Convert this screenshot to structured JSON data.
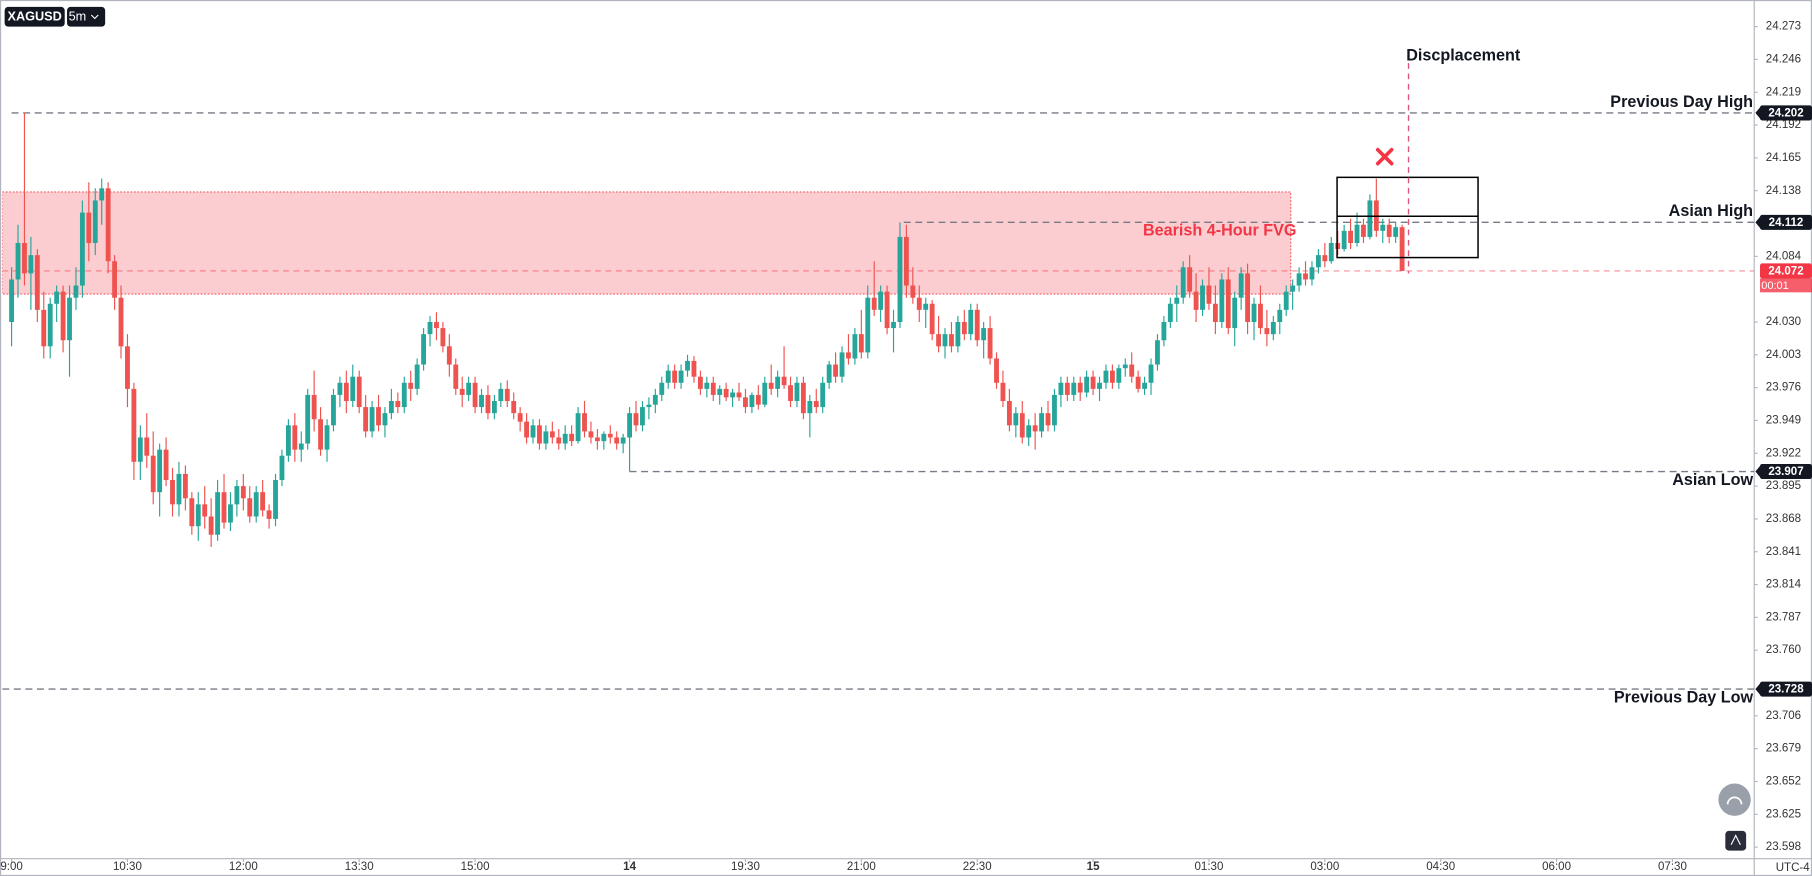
{
  "chart_data": {
    "type": "candlestick",
    "symbol": "XAGUSD",
    "interval": "5m",
    "timezone": "UTC-4",
    "up_color": "#26a69a",
    "down_color": "#ef5350",
    "grid": false,
    "xlim": [
      -1.44,
      270.7
    ],
    "ylim": [
      23.5885,
      24.293
    ],
    "xticks": [
      {
        "value": 0,
        "label": "9:00"
      },
      {
        "value": 18,
        "label": "10:30"
      },
      {
        "value": 36,
        "label": "12:00"
      },
      {
        "value": 54,
        "label": "13:30"
      },
      {
        "value": 72,
        "label": "15:00"
      },
      {
        "value": 96,
        "label": "14"
      },
      {
        "value": 114,
        "label": "19:30"
      },
      {
        "value": 132,
        "label": "21:00"
      },
      {
        "value": 150,
        "label": "22:30"
      },
      {
        "value": 168,
        "label": "15"
      },
      {
        "value": 186,
        "label": "01:30"
      },
      {
        "value": 204,
        "label": "03:00"
      },
      {
        "value": 222,
        "label": "04:30"
      },
      {
        "value": 240,
        "label": "06:00"
      },
      {
        "value": 258,
        "label": "07:30"
      }
    ],
    "yticks": [
      24.273,
      24.246,
      24.219,
      24.192,
      24.165,
      24.138,
      24.084,
      {
        "value": 24.03,
        "label": "24.030"
      },
      24.003,
      23.976,
      23.949,
      23.922,
      23.895,
      23.868,
      23.841,
      23.814,
      23.787,
      {
        "value": 23.76,
        "label": "23.760"
      },
      23.706,
      23.679,
      23.652,
      23.625,
      23.598
    ],
    "candles": [
      [
        24.03,
        24.075,
        24.01,
        24.065
      ],
      [
        24.065,
        24.11,
        24.05,
        24.095
      ],
      [
        24.095,
        24.202,
        24.06,
        24.07
      ],
      [
        24.07,
        24.1,
        24.04,
        24.085
      ],
      [
        24.085,
        24.09,
        24.03,
        24.04
      ],
      [
        24.04,
        24.055,
        24.0,
        24.01
      ],
      [
        24.01,
        24.05,
        24.0,
        24.045
      ],
      [
        24.045,
        24.06,
        24.03,
        24.055
      ],
      [
        24.055,
        24.06,
        24.005,
        24.015
      ],
      [
        24.015,
        24.06,
        23.985,
        24.05
      ],
      [
        24.05,
        24.075,
        24.04,
        24.06
      ],
      [
        24.06,
        24.13,
        24.05,
        24.12
      ],
      [
        24.12,
        24.145,
        24.08,
        24.095
      ],
      [
        24.095,
        24.14,
        24.085,
        24.13
      ],
      [
        24.13,
        24.148,
        24.11,
        24.14
      ],
      [
        24.14,
        24.145,
        24.07,
        24.08
      ],
      [
        24.08,
        24.085,
        24.04,
        24.05
      ],
      [
        24.05,
        24.06,
        24.0,
        24.01
      ],
      [
        24.01,
        24.02,
        23.96,
        23.975
      ],
      [
        23.975,
        23.98,
        23.9,
        23.915
      ],
      [
        23.915,
        23.945,
        23.9,
        23.935
      ],
      [
        23.935,
        23.955,
        23.91,
        23.92
      ],
      [
        23.92,
        23.94,
        23.88,
        23.89
      ],
      [
        23.89,
        23.93,
        23.87,
        23.925
      ],
      [
        23.925,
        23.935,
        23.895,
        23.9
      ],
      [
        23.9,
        23.91,
        23.87,
        23.88
      ],
      [
        23.88,
        23.915,
        23.87,
        23.905
      ],
      [
        23.905,
        23.912,
        23.875,
        23.885
      ],
      [
        23.885,
        23.89,
        23.855,
        23.862
      ],
      [
        23.862,
        23.89,
        23.85,
        23.88
      ],
      [
        23.88,
        23.895,
        23.86,
        23.87
      ],
      [
        23.87,
        23.885,
        23.845,
        23.855
      ],
      [
        23.855,
        23.9,
        23.85,
        23.89
      ],
      [
        23.89,
        23.905,
        23.86,
        23.865
      ],
      [
        23.865,
        23.89,
        23.858,
        23.88
      ],
      [
        23.88,
        23.9,
        23.87,
        23.895
      ],
      [
        23.895,
        23.905,
        23.875,
        23.885
      ],
      [
        23.885,
        23.895,
        23.865,
        23.87
      ],
      [
        23.87,
        23.895,
        23.865,
        23.89
      ],
      [
        23.89,
        23.9,
        23.87,
        23.875
      ],
      [
        23.875,
        23.88,
        23.86,
        23.868
      ],
      [
        23.868,
        23.905,
        23.862,
        23.9
      ],
      [
        23.9,
        23.925,
        23.895,
        23.92
      ],
      [
        23.92,
        23.95,
        23.915,
        23.945
      ],
      [
        23.945,
        23.955,
        23.915,
        23.925
      ],
      [
        23.925,
        23.94,
        23.915,
        23.93
      ],
      [
        23.93,
        23.975,
        23.925,
        23.97
      ],
      [
        23.97,
        23.99,
        23.94,
        23.95
      ],
      [
        23.95,
        23.96,
        23.92,
        23.925
      ],
      [
        23.925,
        23.95,
        23.915,
        23.945
      ],
      [
        23.945,
        23.975,
        23.94,
        23.97
      ],
      [
        23.97,
        23.985,
        23.96,
        23.98
      ],
      [
        23.98,
        23.99,
        23.955,
        23.965
      ],
      [
        23.965,
        23.995,
        23.96,
        23.985
      ],
      [
        23.985,
        23.99,
        23.955,
        23.96
      ],
      [
        23.96,
        23.97,
        23.935,
        23.94
      ],
      [
        23.94,
        23.965,
        23.935,
        23.96
      ],
      [
        23.96,
        23.97,
        23.94,
        23.945
      ],
      [
        23.945,
        23.96,
        23.935,
        23.955
      ],
      [
        23.955,
        23.975,
        23.95,
        23.965
      ],
      [
        23.965,
        23.972,
        23.955,
        23.96
      ],
      [
        23.96,
        23.985,
        23.955,
        23.98
      ],
      [
        23.98,
        23.99,
        23.965,
        23.975
      ],
      [
        23.975,
        24.0,
        23.97,
        23.995
      ],
      [
        23.995,
        24.025,
        23.99,
        24.02
      ],
      [
        24.02,
        24.035,
        24.01,
        24.03
      ],
      [
        24.03,
        24.038,
        24.015,
        24.025
      ],
      [
        24.025,
        24.03,
        24.005,
        24.01
      ],
      [
        24.01,
        24.02,
        23.985,
        23.995
      ],
      [
        23.995,
        24.0,
        23.97,
        23.975
      ],
      [
        23.975,
        23.985,
        23.96,
        23.97
      ],
      [
        23.97,
        23.985,
        23.965,
        23.98
      ],
      [
        23.98,
        23.985,
        23.955,
        23.96
      ],
      [
        23.96,
        23.975,
        23.955,
        23.97
      ],
      [
        23.97,
        23.978,
        23.95,
        23.955
      ],
      [
        23.955,
        23.97,
        23.95,
        23.965
      ],
      [
        23.965,
        23.98,
        23.96,
        23.975
      ],
      [
        23.975,
        23.982,
        23.96,
        23.965
      ],
      [
        23.965,
        23.972,
        23.95,
        23.955
      ],
      [
        23.955,
        23.96,
        23.94,
        23.948
      ],
      [
        23.948,
        23.955,
        23.93,
        23.935
      ],
      [
        23.935,
        23.95,
        23.93,
        23.945
      ],
      [
        23.945,
        23.95,
        23.925,
        23.93
      ],
      [
        23.93,
        23.945,
        23.925,
        23.94
      ],
      [
        23.94,
        23.948,
        23.93,
        23.935
      ],
      [
        23.935,
        23.942,
        23.925,
        23.93
      ],
      [
        23.93,
        23.945,
        23.925,
        23.938
      ],
      [
        23.938,
        23.945,
        23.928,
        23.932
      ],
      [
        23.932,
        23.96,
        23.93,
        23.955
      ],
      [
        23.955,
        23.965,
        23.935,
        23.94
      ],
      [
        23.94,
        23.948,
        23.93,
        23.935
      ],
      [
        23.935,
        23.942,
        23.925,
        23.932
      ],
      [
        23.932,
        23.94,
        23.925,
        23.938
      ],
      [
        23.938,
        23.945,
        23.93,
        23.935
      ],
      [
        23.935,
        23.94,
        23.925,
        23.93
      ],
      [
        23.93,
        23.938,
        23.922,
        23.935
      ],
      [
        23.935,
        23.96,
        23.907,
        23.955
      ],
      [
        23.955,
        23.965,
        23.94,
        23.945
      ],
      [
        23.945,
        23.965,
        23.94,
        23.96
      ],
      [
        23.96,
        23.968,
        23.95,
        23.962
      ],
      [
        23.962,
        23.975,
        23.955,
        23.97
      ],
      [
        23.97,
        23.985,
        23.965,
        23.98
      ],
      [
        23.98,
        23.995,
        23.975,
        23.99
      ],
      [
        23.99,
        23.995,
        23.975,
        23.98
      ],
      [
        23.98,
        23.995,
        23.975,
        23.99
      ],
      [
        23.99,
        24.003,
        23.985,
        23.998
      ],
      [
        23.998,
        24.002,
        23.98,
        23.985
      ],
      [
        23.985,
        23.99,
        23.97,
        23.975
      ],
      [
        23.975,
        23.985,
        23.968,
        23.98
      ],
      [
        23.98,
        23.985,
        23.965,
        23.97
      ],
      [
        23.97,
        23.978,
        23.962,
        23.975
      ],
      [
        23.975,
        23.98,
        23.965,
        23.968
      ],
      [
        23.968,
        23.975,
        23.96,
        23.972
      ],
      [
        23.972,
        23.98,
        23.965,
        23.968
      ],
      [
        23.968,
        23.975,
        23.955,
        23.96
      ],
      [
        23.96,
        23.972,
        23.955,
        23.97
      ],
      [
        23.97,
        23.978,
        23.958,
        23.962
      ],
      [
        23.962,
        23.985,
        23.96,
        23.98
      ],
      [
        23.98,
        23.995,
        23.97,
        23.975
      ],
      [
        23.975,
        23.99,
        23.968,
        23.985
      ],
      [
        23.985,
        24.01,
        23.975,
        23.978
      ],
      [
        23.978,
        23.985,
        23.96,
        23.965
      ],
      [
        23.965,
        23.985,
        23.96,
        23.98
      ],
      [
        23.98,
        23.985,
        23.95,
        23.955
      ],
      [
        23.955,
        23.97,
        23.935,
        23.965
      ],
      [
        23.965,
        23.975,
        23.955,
        23.96
      ],
      [
        23.96,
        23.985,
        23.955,
        23.98
      ],
      [
        23.98,
        23.998,
        23.975,
        23.995
      ],
      [
        23.995,
        24.005,
        23.98,
        23.985
      ],
      [
        23.985,
        24.01,
        23.98,
        24.005
      ],
      [
        24.005,
        24.02,
        23.995,
        24.0
      ],
      [
        24.0,
        24.025,
        23.995,
        24.02
      ],
      [
        24.02,
        24.04,
        24.0,
        24.005
      ],
      [
        24.005,
        24.06,
        24.0,
        24.05
      ],
      [
        24.05,
        24.08,
        24.035,
        24.04
      ],
      [
        24.04,
        24.06,
        24.03,
        24.055
      ],
      [
        24.055,
        24.06,
        24.02,
        24.025
      ],
      [
        24.025,
        24.04,
        24.005,
        24.03
      ],
      [
        24.03,
        24.112,
        24.025,
        24.1
      ],
      [
        24.1,
        24.11,
        24.05,
        24.06
      ],
      [
        24.06,
        24.075,
        24.045,
        24.05
      ],
      [
        24.05,
        24.06,
        24.03,
        24.04
      ],
      [
        24.04,
        24.05,
        24.025,
        24.045
      ],
      [
        24.045,
        24.048,
        24.015,
        24.02
      ],
      [
        24.02,
        24.035,
        24.005,
        24.01
      ],
      [
        24.01,
        24.025,
        24.0,
        24.02
      ],
      [
        24.02,
        24.03,
        24.005,
        24.01
      ],
      [
        24.01,
        24.035,
        24.005,
        24.03
      ],
      [
        24.03,
        24.04,
        24.015,
        24.02
      ],
      [
        24.02,
        24.045,
        24.015,
        24.04
      ],
      [
        24.04,
        24.045,
        24.01,
        24.015
      ],
      [
        24.015,
        24.03,
        24.0,
        24.025
      ],
      [
        24.025,
        24.035,
        23.995,
        24.0
      ],
      [
        24.0,
        24.005,
        23.975,
        23.98
      ],
      [
        23.98,
        23.99,
        23.96,
        23.965
      ],
      [
        23.965,
        23.975,
        23.94,
        23.945
      ],
      [
        23.945,
        23.96,
        23.935,
        23.955
      ],
      [
        23.955,
        23.965,
        23.93,
        23.935
      ],
      [
        23.935,
        23.95,
        23.928,
        23.945
      ],
      [
        23.945,
        23.955,
        23.925,
        23.94
      ],
      [
        23.94,
        23.96,
        23.935,
        23.955
      ],
      [
        23.955,
        23.965,
        23.94,
        23.945
      ],
      [
        23.945,
        23.975,
        23.94,
        23.97
      ],
      [
        23.97,
        23.985,
        23.96,
        23.98
      ],
      [
        23.98,
        23.985,
        23.965,
        23.97
      ],
      [
        23.97,
        23.985,
        23.965,
        23.98
      ],
      [
        23.98,
        23.985,
        23.965,
        23.972
      ],
      [
        23.972,
        23.99,
        23.968,
        23.985
      ],
      [
        23.985,
        23.99,
        23.97,
        23.975
      ],
      [
        23.975,
        23.985,
        23.965,
        23.98
      ],
      [
        23.98,
        23.995,
        23.975,
        23.99
      ],
      [
        23.99,
        23.995,
        23.975,
        23.98
      ],
      [
        23.98,
        23.995,
        23.975,
        23.992
      ],
      [
        23.992,
        24.0,
        23.985,
        23.995
      ],
      [
        23.995,
        24.005,
        23.98,
        23.985
      ],
      [
        23.985,
        23.99,
        23.972,
        23.975
      ],
      [
        23.975,
        23.985,
        23.97,
        23.98
      ],
      [
        23.98,
        24.0,
        23.97,
        23.995
      ],
      [
        23.995,
        24.02,
        23.99,
        24.015
      ],
      [
        24.015,
        24.035,
        24.01,
        24.03
      ],
      [
        24.03,
        24.05,
        24.025,
        24.045
      ],
      [
        24.045,
        24.06,
        24.03,
        24.05
      ],
      [
        24.05,
        24.08,
        24.045,
        24.075
      ],
      [
        24.075,
        24.085,
        24.05,
        24.055
      ],
      [
        24.055,
        24.07,
        24.03,
        24.04
      ],
      [
        24.04,
        24.065,
        24.035,
        24.06
      ],
      [
        24.06,
        24.075,
        24.04,
        24.045
      ],
      [
        24.045,
        24.06,
        24.02,
        24.03
      ],
      [
        24.03,
        24.07,
        24.025,
        24.065
      ],
      [
        24.065,
        24.075,
        24.02,
        24.025
      ],
      [
        24.025,
        24.055,
        24.01,
        24.05
      ],
      [
        24.05,
        24.075,
        24.04,
        24.07
      ],
      [
        24.07,
        24.078,
        24.02,
        24.03
      ],
      [
        24.03,
        24.05,
        24.015,
        24.045
      ],
      [
        24.045,
        24.06,
        24.02,
        24.025
      ],
      [
        24.025,
        24.04,
        24.01,
        24.02
      ],
      [
        24.02,
        24.035,
        24.015,
        24.03
      ],
      [
        24.03,
        24.045,
        24.02,
        24.04
      ],
      [
        24.04,
        24.06,
        24.035,
        24.055
      ],
      [
        24.055,
        24.065,
        24.04,
        24.06
      ],
      [
        24.06,
        24.075,
        24.055,
        24.07
      ],
      [
        24.07,
        24.08,
        24.06,
        24.065
      ],
      [
        24.065,
        24.08,
        24.06,
        24.075
      ],
      [
        24.075,
        24.09,
        24.07,
        24.085
      ],
      [
        24.085,
        24.095,
        24.075,
        24.08
      ],
      [
        24.08,
        24.1,
        24.078,
        24.095
      ],
      [
        24.095,
        24.105,
        24.085,
        24.09
      ],
      [
        24.09,
        24.11,
        24.088,
        24.105
      ],
      [
        24.105,
        24.115,
        24.09,
        24.095
      ],
      [
        24.095,
        24.12,
        24.092,
        24.11
      ],
      [
        24.11,
        24.115,
        24.095,
        24.1
      ],
      [
        24.1,
        24.135,
        24.098,
        24.13
      ],
      [
        24.13,
        24.148,
        24.1,
        24.105
      ],
      [
        24.105,
        24.115,
        24.095,
        24.11
      ],
      [
        24.11,
        24.115,
        24.095,
        24.1
      ],
      [
        24.1,
        24.112,
        24.095,
        24.108
      ],
      [
        24.108,
        24.11,
        24.072,
        24.072
      ]
    ],
    "levels": [
      {
        "name": "Previous Day High",
        "value": 24.202,
        "x_start": 0
      },
      {
        "name": "Asian High",
        "value": 24.112,
        "x_start": 138.6
      },
      {
        "name": "Asian Low",
        "value": 23.907,
        "x_start": 96
      },
      {
        "name": "Previous Day Low",
        "value": 23.728,
        "x_start": -1.44
      }
    ],
    "last_price": {
      "value": 24.072,
      "countdown": "00:01",
      "color": "#f23645"
    },
    "zone": {
      "label": "Bearish 4-Hour FVG",
      "top": 24.137,
      "bottom": 24.053,
      "x_start": -1.44,
      "x_end": 198.7,
      "color": "#f23645"
    },
    "box": {
      "top": 24.149,
      "mid": 24.117,
      "bottom": 24.083,
      "x_start": 205.9,
      "x_end": 227.8
    },
    "displacement": {
      "label": "Discplacement",
      "x": 217,
      "top": 24.243,
      "bottom": 24.07,
      "color": "#e0557a"
    },
    "rejection_mark": {
      "x": 213.3,
      "y": 24.166,
      "color": "#f23645"
    }
  }
}
